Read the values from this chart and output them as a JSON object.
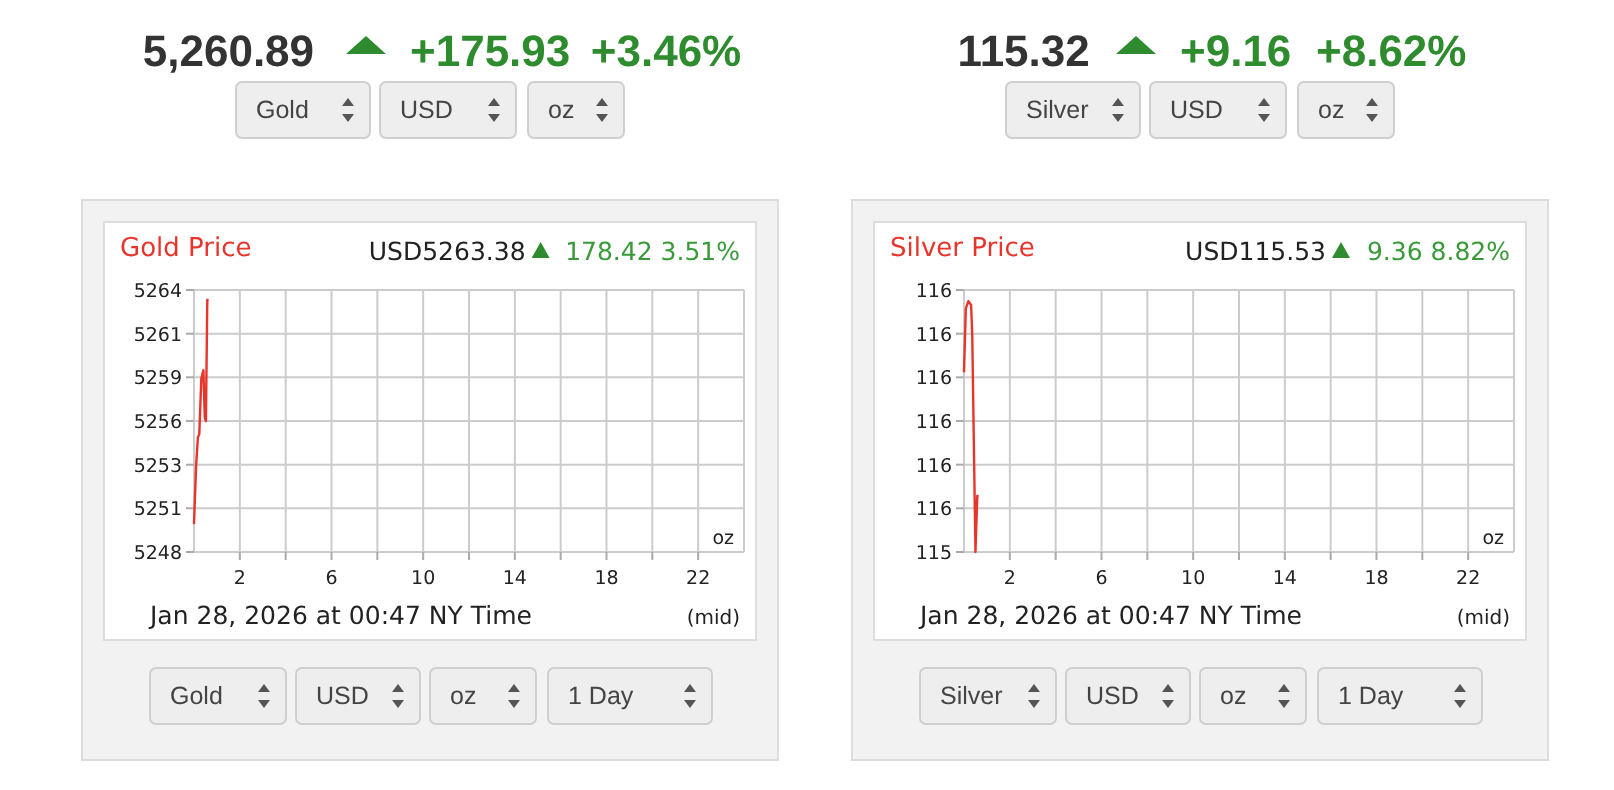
{
  "chart_data": [
    {
      "type": "line",
      "title": "Gold Price",
      "subtitle": "USD5263.38",
      "annotations": [
        "5,260.89",
        "+175.93",
        "+3.46%",
        "178.42 3.51%",
        "oz",
        "Jan 28, 2026 at 00:47 NY Time",
        "(mid)",
        "Gold",
        "USD",
        "oz",
        "Gold",
        "USD",
        "oz",
        "1 Day"
      ],
      "x": [
        0,
        0.09,
        0.17,
        0.23,
        0.32,
        0.41,
        0.47,
        0.52,
        0.58,
        0.64
      ],
      "series": [
        {
          "color": "#e8352b",
          "values": [
            5249.7,
            5253.2,
            5255.0,
            5255.2,
            5258.6,
            5259.1,
            5256.2,
            5256.0,
            5263.4,
            5263.4
          ]
        }
      ],
      "xlim": [
        0,
        24
      ],
      "xticks": [
        2,
        {
          "value": 4,
          "label": null
        },
        6,
        {
          "value": 8,
          "label": null
        },
        10,
        {
          "value": 12,
          "label": null
        },
        14,
        {
          "value": 16,
          "label": null
        },
        18,
        {
          "value": 20,
          "label": null
        },
        22
      ],
      "ylim": [
        5248,
        5264
      ],
      "yticks": [
        5248,
        {
          "value": 5250.67,
          "label": "5251"
        },
        {
          "value": 5253.33,
          "label": "5253"
        },
        5256,
        {
          "value": 5258.67,
          "label": "5259"
        },
        {
          "value": 5261.33,
          "label": "5261"
        },
        5264
      ],
      "grid": true,
      "marker": "none",
      "line_style": "solid"
    },
    {
      "type": "line",
      "title": "Silver Price",
      "subtitle": "USD115.53",
      "annotations": [
        "115.32",
        "+9.16",
        "+8.62%",
        "9.36 8.82%",
        "oz",
        "Jan 28, 2026 at 00:47 NY Time",
        "(mid)",
        "Silver",
        "USD",
        "oz",
        "Silver",
        "USD",
        "oz",
        "1 Day"
      ],
      "x": [
        0,
        0.08,
        0.19,
        0.31,
        0.36,
        0.5,
        0.58,
        0.64
      ],
      "series": [
        {
          "color": "#e8352b",
          "values": [
            115.88,
            116.05,
            116.07,
            116.06,
            115.98,
            115.4,
            115.55,
            115.55
          ]
        }
      ],
      "xlim": [
        0,
        24
      ],
      "xticks": [
        2,
        {
          "value": 4,
          "label": null
        },
        6,
        {
          "value": 8,
          "label": null
        },
        10,
        {
          "value": 12,
          "label": null
        },
        14,
        {
          "value": 16,
          "label": null
        },
        18,
        {
          "value": 20,
          "label": null
        },
        22
      ],
      "ylim": [
        115.4,
        116.1
      ],
      "yticks": [
        {
          "value": 115.4,
          "label": "115"
        },
        {
          "value": 115.5167,
          "label": "116"
        },
        {
          "value": 115.6333,
          "label": "116"
        },
        {
          "value": 115.75,
          "label": "116"
        },
        {
          "value": 115.8667,
          "label": "116"
        },
        {
          "value": 115.9833,
          "label": "116"
        },
        {
          "value": 116.1,
          "label": "116"
        }
      ],
      "grid": true,
      "marker": "none",
      "line_style": "solid"
    }
  ]
}
